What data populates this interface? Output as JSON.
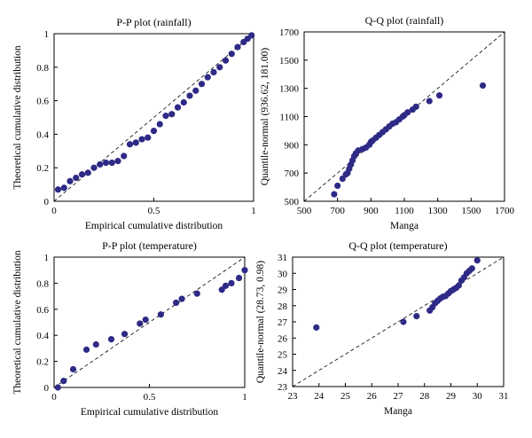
{
  "chart_data": [
    {
      "type": "scatter",
      "title": "P-P plot (rainfall)",
      "xlabel": "Empirical cumulative distribution",
      "ylabel": "Theoretical cumulative distribution",
      "xlim": [
        0,
        1
      ],
      "ylim": [
        0,
        1
      ],
      "xticks": [
        "0",
        "0.5",
        "1"
      ],
      "yticks": [
        "0",
        "0.2",
        "0.4",
        "0.6",
        "0.8",
        "1"
      ],
      "reference_line": [
        [
          0,
          0
        ],
        [
          1,
          1
        ]
      ],
      "points": [
        [
          0.02,
          0.07
        ],
        [
          0.05,
          0.08
        ],
        [
          0.08,
          0.12
        ],
        [
          0.11,
          0.14
        ],
        [
          0.14,
          0.16
        ],
        [
          0.17,
          0.17
        ],
        [
          0.2,
          0.2
        ],
        [
          0.23,
          0.22
        ],
        [
          0.26,
          0.23
        ],
        [
          0.29,
          0.23
        ],
        [
          0.32,
          0.24
        ],
        [
          0.35,
          0.27
        ],
        [
          0.38,
          0.34
        ],
        [
          0.41,
          0.35
        ],
        [
          0.44,
          0.37
        ],
        [
          0.47,
          0.38
        ],
        [
          0.5,
          0.42
        ],
        [
          0.53,
          0.46
        ],
        [
          0.56,
          0.51
        ],
        [
          0.59,
          0.52
        ],
        [
          0.62,
          0.56
        ],
        [
          0.65,
          0.59
        ],
        [
          0.68,
          0.63
        ],
        [
          0.71,
          0.66
        ],
        [
          0.74,
          0.7
        ],
        [
          0.77,
          0.74
        ],
        [
          0.8,
          0.77
        ],
        [
          0.83,
          0.8
        ],
        [
          0.86,
          0.84
        ],
        [
          0.89,
          0.88
        ],
        [
          0.92,
          0.92
        ],
        [
          0.95,
          0.95
        ],
        [
          0.97,
          0.97
        ],
        [
          0.99,
          0.99
        ]
      ]
    },
    {
      "type": "scatter",
      "title": "Q-Q plot (rainfall)",
      "xlabel": "Manga",
      "ylabel": "Quantile-normal (936.62, 181.00)",
      "xlim": [
        500,
        1700
      ],
      "ylim": [
        500,
        1700
      ],
      "xticks": [
        "500",
        "700",
        "900",
        "1100",
        "1300",
        "1500",
        "1700"
      ],
      "yticks": [
        "500",
        "700",
        "900",
        "1100",
        "1300",
        "1500",
        "1700"
      ],
      "reference_line": [
        [
          500,
          500
        ],
        [
          1700,
          1700
        ]
      ],
      "points": [
        [
          680,
          550
        ],
        [
          700,
          610
        ],
        [
          730,
          660
        ],
        [
          750,
          690
        ],
        [
          760,
          700
        ],
        [
          770,
          730
        ],
        [
          780,
          760
        ],
        [
          790,
          790
        ],
        [
          800,
          820
        ],
        [
          810,
          840
        ],
        [
          825,
          860
        ],
        [
          850,
          870
        ],
        [
          870,
          880
        ],
        [
          890,
          900
        ],
        [
          900,
          920
        ],
        [
          910,
          930
        ],
        [
          930,
          950
        ],
        [
          950,
          970
        ],
        [
          970,
          990
        ],
        [
          990,
          1010
        ],
        [
          1010,
          1030
        ],
        [
          1030,
          1050
        ],
        [
          1050,
          1060
        ],
        [
          1070,
          1080
        ],
        [
          1090,
          1100
        ],
        [
          1100,
          1110
        ],
        [
          1120,
          1130
        ],
        [
          1150,
          1150
        ],
        [
          1170,
          1170
        ],
        [
          1250,
          1210
        ],
        [
          1310,
          1250
        ],
        [
          1570,
          1320
        ]
      ]
    },
    {
      "type": "scatter",
      "title": "P-P plot (temperature)",
      "xlabel": "Empirical cumulative distribution",
      "ylabel": "Theoretical cumulative distribution",
      "xlim": [
        0,
        1
      ],
      "ylim": [
        0,
        1
      ],
      "xticks": [
        "0",
        "0.5",
        "1"
      ],
      "yticks": [
        "0",
        "0.2",
        "0.4",
        "0.6",
        "0.8",
        "1"
      ],
      "reference_line": [
        [
          0,
          0
        ],
        [
          1,
          1
        ]
      ],
      "points": [
        [
          0.02,
          0.0
        ],
        [
          0.05,
          0.05
        ],
        [
          0.1,
          0.14
        ],
        [
          0.17,
          0.29
        ],
        [
          0.22,
          0.33
        ],
        [
          0.3,
          0.37
        ],
        [
          0.37,
          0.41
        ],
        [
          0.45,
          0.49
        ],
        [
          0.48,
          0.52
        ],
        [
          0.56,
          0.56
        ],
        [
          0.64,
          0.65
        ],
        [
          0.67,
          0.68
        ],
        [
          0.75,
          0.72
        ],
        [
          0.88,
          0.75
        ],
        [
          0.9,
          0.78
        ],
        [
          0.93,
          0.8
        ],
        [
          0.97,
          0.84
        ],
        [
          1.0,
          0.9
        ]
      ]
    },
    {
      "type": "scatter",
      "title": "Q-Q plot (temperature)",
      "xlabel": "Manga",
      "ylabel": "Quantile-normal (28.73, 0.98)",
      "xlim": [
        23,
        31
      ],
      "ylim": [
        23,
        31
      ],
      "xticks": [
        "23",
        "24",
        "25",
        "26",
        "27",
        "28",
        "29",
        "30",
        "31"
      ],
      "yticks": [
        "23",
        "24",
        "25",
        "26",
        "27",
        "28",
        "29",
        "30",
        "31"
      ],
      "reference_line": [
        [
          23,
          23
        ],
        [
          31,
          31
        ]
      ],
      "points": [
        [
          23.9,
          26.65
        ],
        [
          27.2,
          27.0
        ],
        [
          27.7,
          27.35
        ],
        [
          28.2,
          27.7
        ],
        [
          28.3,
          27.9
        ],
        [
          28.4,
          28.15
        ],
        [
          28.5,
          28.3
        ],
        [
          28.6,
          28.45
        ],
        [
          28.7,
          28.55
        ],
        [
          28.8,
          28.6
        ],
        [
          28.9,
          28.75
        ],
        [
          29.0,
          28.9
        ],
        [
          29.1,
          29.0
        ],
        [
          29.2,
          29.1
        ],
        [
          29.3,
          29.25
        ],
        [
          29.4,
          29.55
        ],
        [
          29.5,
          29.75
        ],
        [
          29.6,
          30.0
        ],
        [
          29.7,
          30.15
        ],
        [
          29.8,
          30.3
        ],
        [
          30.0,
          30.8
        ]
      ]
    }
  ]
}
